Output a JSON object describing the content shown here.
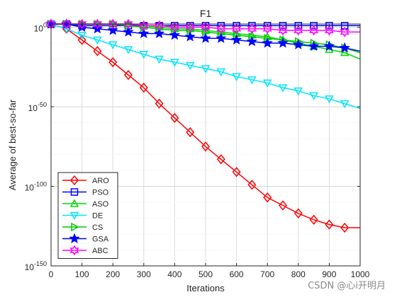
{
  "watermark": "CSDN @心i开明月",
  "chart_data": {
    "type": "line",
    "title": "F1",
    "xlabel": "Iterations",
    "ylabel": "Average of best-so-far",
    "x_ticks": [
      "0",
      "100",
      "200",
      "300",
      "400",
      "500",
      "600",
      "700",
      "800",
      "900",
      "1000"
    ],
    "y_ticks": [
      {
        "base": "10",
        "exp": "0"
      },
      {
        "base": "10",
        "exp": "-50"
      },
      {
        "base": "10",
        "exp": "-100"
      },
      {
        "base": "10",
        "exp": "-150"
      }
    ],
    "xlim": [
      0,
      1000
    ],
    "ylim_log10": [
      -150,
      2
    ],
    "y_scale": "log",
    "grid": true,
    "legend_position": "bottom-left",
    "series": [
      {
        "name": "ARO",
        "color": "#ff0000",
        "marker": "diamond",
        "x": [
          0,
          50,
          100,
          150,
          200,
          250,
          300,
          350,
          400,
          450,
          500,
          550,
          600,
          650,
          700,
          750,
          800,
          850,
          900,
          950,
          1000
        ],
        "y_log10": [
          6,
          -1,
          -8,
          -15,
          -22,
          -30,
          -38,
          -48,
          -57,
          -66,
          -75,
          -83,
          -91,
          -99,
          -107,
          -112,
          -117,
          -121,
          -124,
          -126,
          -126
        ]
      },
      {
        "name": "PSO",
        "color": "#0000ff",
        "marker": "square",
        "x": [
          0,
          50,
          100,
          150,
          200,
          250,
          300,
          350,
          400,
          450,
          500,
          550,
          600,
          650,
          700,
          750,
          800,
          850,
          900,
          950,
          1000
        ],
        "y_log10": [
          6,
          2,
          1,
          1,
          1,
          1,
          1,
          1,
          1,
          1,
          1,
          1,
          1,
          1,
          1,
          1,
          1,
          1,
          1,
          1,
          1
        ]
      },
      {
        "name": "ASO",
        "color": "#00dd00",
        "marker": "triangle-up",
        "x": [
          0,
          50,
          100,
          150,
          200,
          250,
          300,
          350,
          400,
          450,
          500,
          550,
          600,
          650,
          700,
          750,
          800,
          850,
          900,
          950,
          1000
        ],
        "y_log10": [
          6,
          5,
          5,
          4,
          3,
          2,
          1,
          0,
          -1,
          -1,
          -2,
          -3,
          -4,
          -5,
          -6,
          -8,
          -10,
          -12,
          -14,
          -16,
          -20
        ]
      },
      {
        "name": "DE",
        "color": "#00e5ff",
        "marker": "triangle-down",
        "x": [
          0,
          50,
          100,
          150,
          200,
          250,
          300,
          350,
          400,
          450,
          500,
          550,
          600,
          650,
          700,
          750,
          800,
          850,
          900,
          950,
          1000
        ],
        "y_log10": [
          6,
          -1,
          -5,
          -8,
          -11,
          -14,
          -17,
          -20,
          -22,
          -24,
          -26,
          -28,
          -31,
          -33,
          -35,
          -38,
          -40,
          -43,
          -45,
          -48,
          -51
        ]
      },
      {
        "name": "CS",
        "color": "#00cc00",
        "marker": "triangle-right",
        "x": [
          0,
          50,
          100,
          150,
          200,
          250,
          300,
          350,
          400,
          450,
          500,
          550,
          600,
          650,
          700,
          750,
          800,
          850,
          900,
          950,
          1000
        ],
        "y_log10": [
          6,
          4,
          3,
          2,
          2,
          1,
          0,
          -1,
          -2,
          -2,
          -3,
          -4,
          -5,
          -6,
          -7,
          -8,
          -9,
          -10,
          -11,
          -13,
          -16
        ]
      },
      {
        "name": "GSA",
        "color": "#0000ff",
        "marker": "star",
        "x": [
          0,
          50,
          100,
          150,
          200,
          250,
          300,
          350,
          400,
          450,
          500,
          550,
          600,
          650,
          700,
          750,
          800,
          850,
          900,
          950,
          1000
        ],
        "y_log10": [
          6,
          2,
          0,
          -1,
          -2,
          -3,
          -4,
          -4,
          -5,
          -6,
          -7,
          -7,
          -8,
          -9,
          -10,
          -10,
          -11,
          -12,
          -12,
          -13,
          -15
        ]
      },
      {
        "name": "ABC",
        "color": "#ff00ff",
        "marker": "hexagram",
        "x": [
          0,
          50,
          100,
          150,
          200,
          250,
          300,
          350,
          400,
          450,
          500,
          550,
          600,
          650,
          700,
          750,
          800,
          850,
          900,
          950,
          1000
        ],
        "y_log10": [
          6,
          4,
          3,
          3,
          2,
          2,
          1,
          1,
          0,
          0,
          0,
          -1,
          -1,
          -1,
          -1,
          -2,
          -2,
          -2,
          -2,
          -3,
          -3
        ]
      }
    ]
  }
}
